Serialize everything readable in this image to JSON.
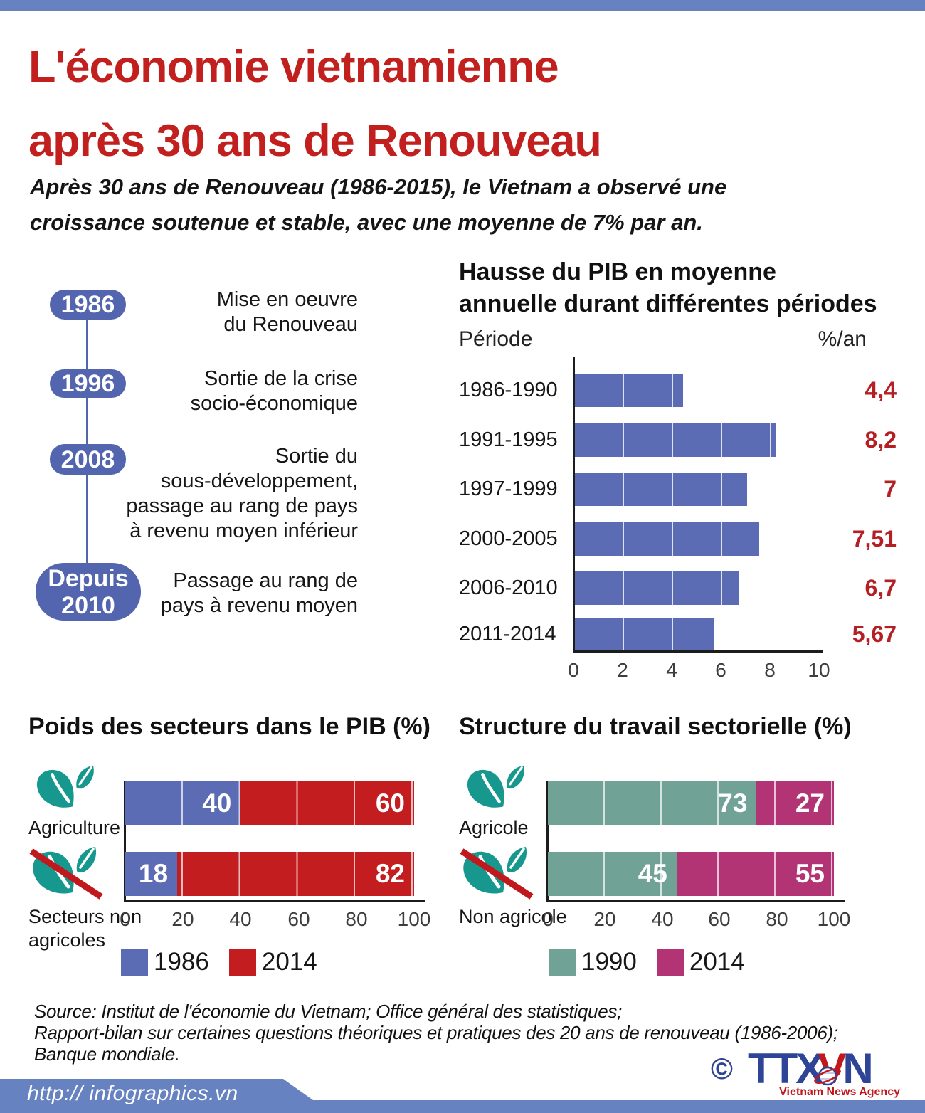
{
  "colors": {
    "accent_blue_bar": "#6782c0",
    "title_red": "#c1201e",
    "timeline_pill_blue": "#5365af",
    "bar_blue": "#5c6cb4",
    "bar_red": "#c41d20",
    "bar_teal": "#70a296",
    "bar_magenta": "#b23474",
    "value_red": "#b41f24",
    "leaf_teal": "#17988f",
    "logo_blue": "#2e4496",
    "logo_red": "#c0181c"
  },
  "header": {
    "title_lines": [
      "L'économie vietnamienne",
      "après 30 ans de Renouveau"
    ],
    "subtitle": "Après 30 ans de Renouveau (1986-2015), le Vietnam a observé une croissance soutenue et stable, avec une moyenne de 7% par an.",
    "subtitle_lines": [
      "Après 30 ans de Renouveau (1986-2015), le Vietnam a observé une",
      "croissance soutenue et stable, avec une moyenne de 7% par an."
    ]
  },
  "timeline": {
    "items": [
      {
        "year": "1986",
        "year_lines": [
          "1986"
        ],
        "label": "Mise en oeuvre du Renouveau",
        "label_lines": [
          "Mise en oeuvre",
          "du Renouveau"
        ]
      },
      {
        "year": "1996",
        "year_lines": [
          "1996"
        ],
        "label": "Sortie de la crise socio-économique",
        "label_lines": [
          "Sortie de la crise",
          "socio-économique"
        ]
      },
      {
        "year": "2008",
        "year_lines": [
          "2008"
        ],
        "label": "Sortie du sous-développement, passage au rang de pays à revenu moyen inférieur",
        "label_lines": [
          "Sortie du",
          "sous-développement,",
          "passage au rang de pays",
          "à revenu moyen inférieur"
        ]
      },
      {
        "year": "Depuis 2010",
        "year_lines": [
          "Depuis",
          "2010"
        ],
        "label": "Passage au rang de pays à revenu moyen",
        "label_lines": [
          "Passage au rang de",
          "pays à revenu moyen"
        ]
      }
    ]
  },
  "chart_data": [
    {
      "type": "bar",
      "orientation": "horizontal",
      "title": "Hausse du PIB en moyenne annuelle durant différentes périodes",
      "title_lines": [
        "Hausse du PIB en moyenne",
        "annuelle durant différentes périodes"
      ],
      "col_header_left": "Période",
      "col_header_right": "%/an",
      "categories": [
        "1986-1990",
        "1991-1995",
        "1997-1999",
        "2000-2005",
        "2006-2010",
        "2011-2014"
      ],
      "values": [
        4.4,
        8.2,
        7,
        7.51,
        6.7,
        5.67
      ],
      "value_labels": [
        "4,4",
        "8,2",
        "7",
        "7,51",
        "6,7",
        "5,67"
      ],
      "xlim": [
        0,
        10
      ],
      "xticks": [
        0,
        2,
        4,
        6,
        8,
        10
      ],
      "bar_color": "#5c6cb4",
      "value_color": "#b41f24",
      "grid": "white vertical lines every 2 units inside bars"
    },
    {
      "type": "stacked_bar",
      "title": "Poids des secteurs dans le PIB (%)",
      "categories": [
        "Agriculture",
        "Secteurs non agricoles"
      ],
      "categories_lines": [
        [
          "Agriculture"
        ],
        [
          "Secteurs non",
          "agricoles"
        ]
      ],
      "series": [
        {
          "name": "1986",
          "color": "#5c6cb4",
          "values": [
            40,
            18
          ]
        },
        {
          "name": "2014",
          "color": "#c41d20",
          "values": [
            60,
            82
          ]
        }
      ],
      "xticks": [
        0,
        20,
        40,
        60,
        80,
        100
      ],
      "legend_position": "bottom",
      "icons": [
        "leaf-icon",
        "leaf-crossed-icon"
      ]
    },
    {
      "type": "stacked_bar",
      "title": "Structure du travail sectorielle (%)",
      "categories": [
        "Agricole",
        "Non agricole"
      ],
      "categories_lines": [
        [
          "Agricole"
        ],
        [
          "Non agricole"
        ]
      ],
      "series": [
        {
          "name": "1990",
          "color": "#70a296",
          "values": [
            73,
            45
          ]
        },
        {
          "name": "2014",
          "color": "#b23474",
          "values": [
            27,
            55
          ]
        }
      ],
      "xticks": [
        0,
        20,
        40,
        60,
        80,
        100
      ],
      "legend_position": "bottom",
      "icons": [
        "leaf-icon",
        "leaf-crossed-icon"
      ]
    }
  ],
  "source": {
    "lines": [
      "Source: Institut de l'économie du Vietnam; Office général des statistiques;",
      "Rapport-bilan sur certaines questions théoriques et pratiques des 20 ans de renouveau (1986-2006);",
      "Banque mondiale."
    ]
  },
  "footer": {
    "url": "http:// infographics.vn"
  },
  "logo": {
    "copyright": "©",
    "blue_left": "TTX",
    "red_letter": "V",
    "blue_right": "N",
    "tagline": "Vietnam News Agency"
  }
}
